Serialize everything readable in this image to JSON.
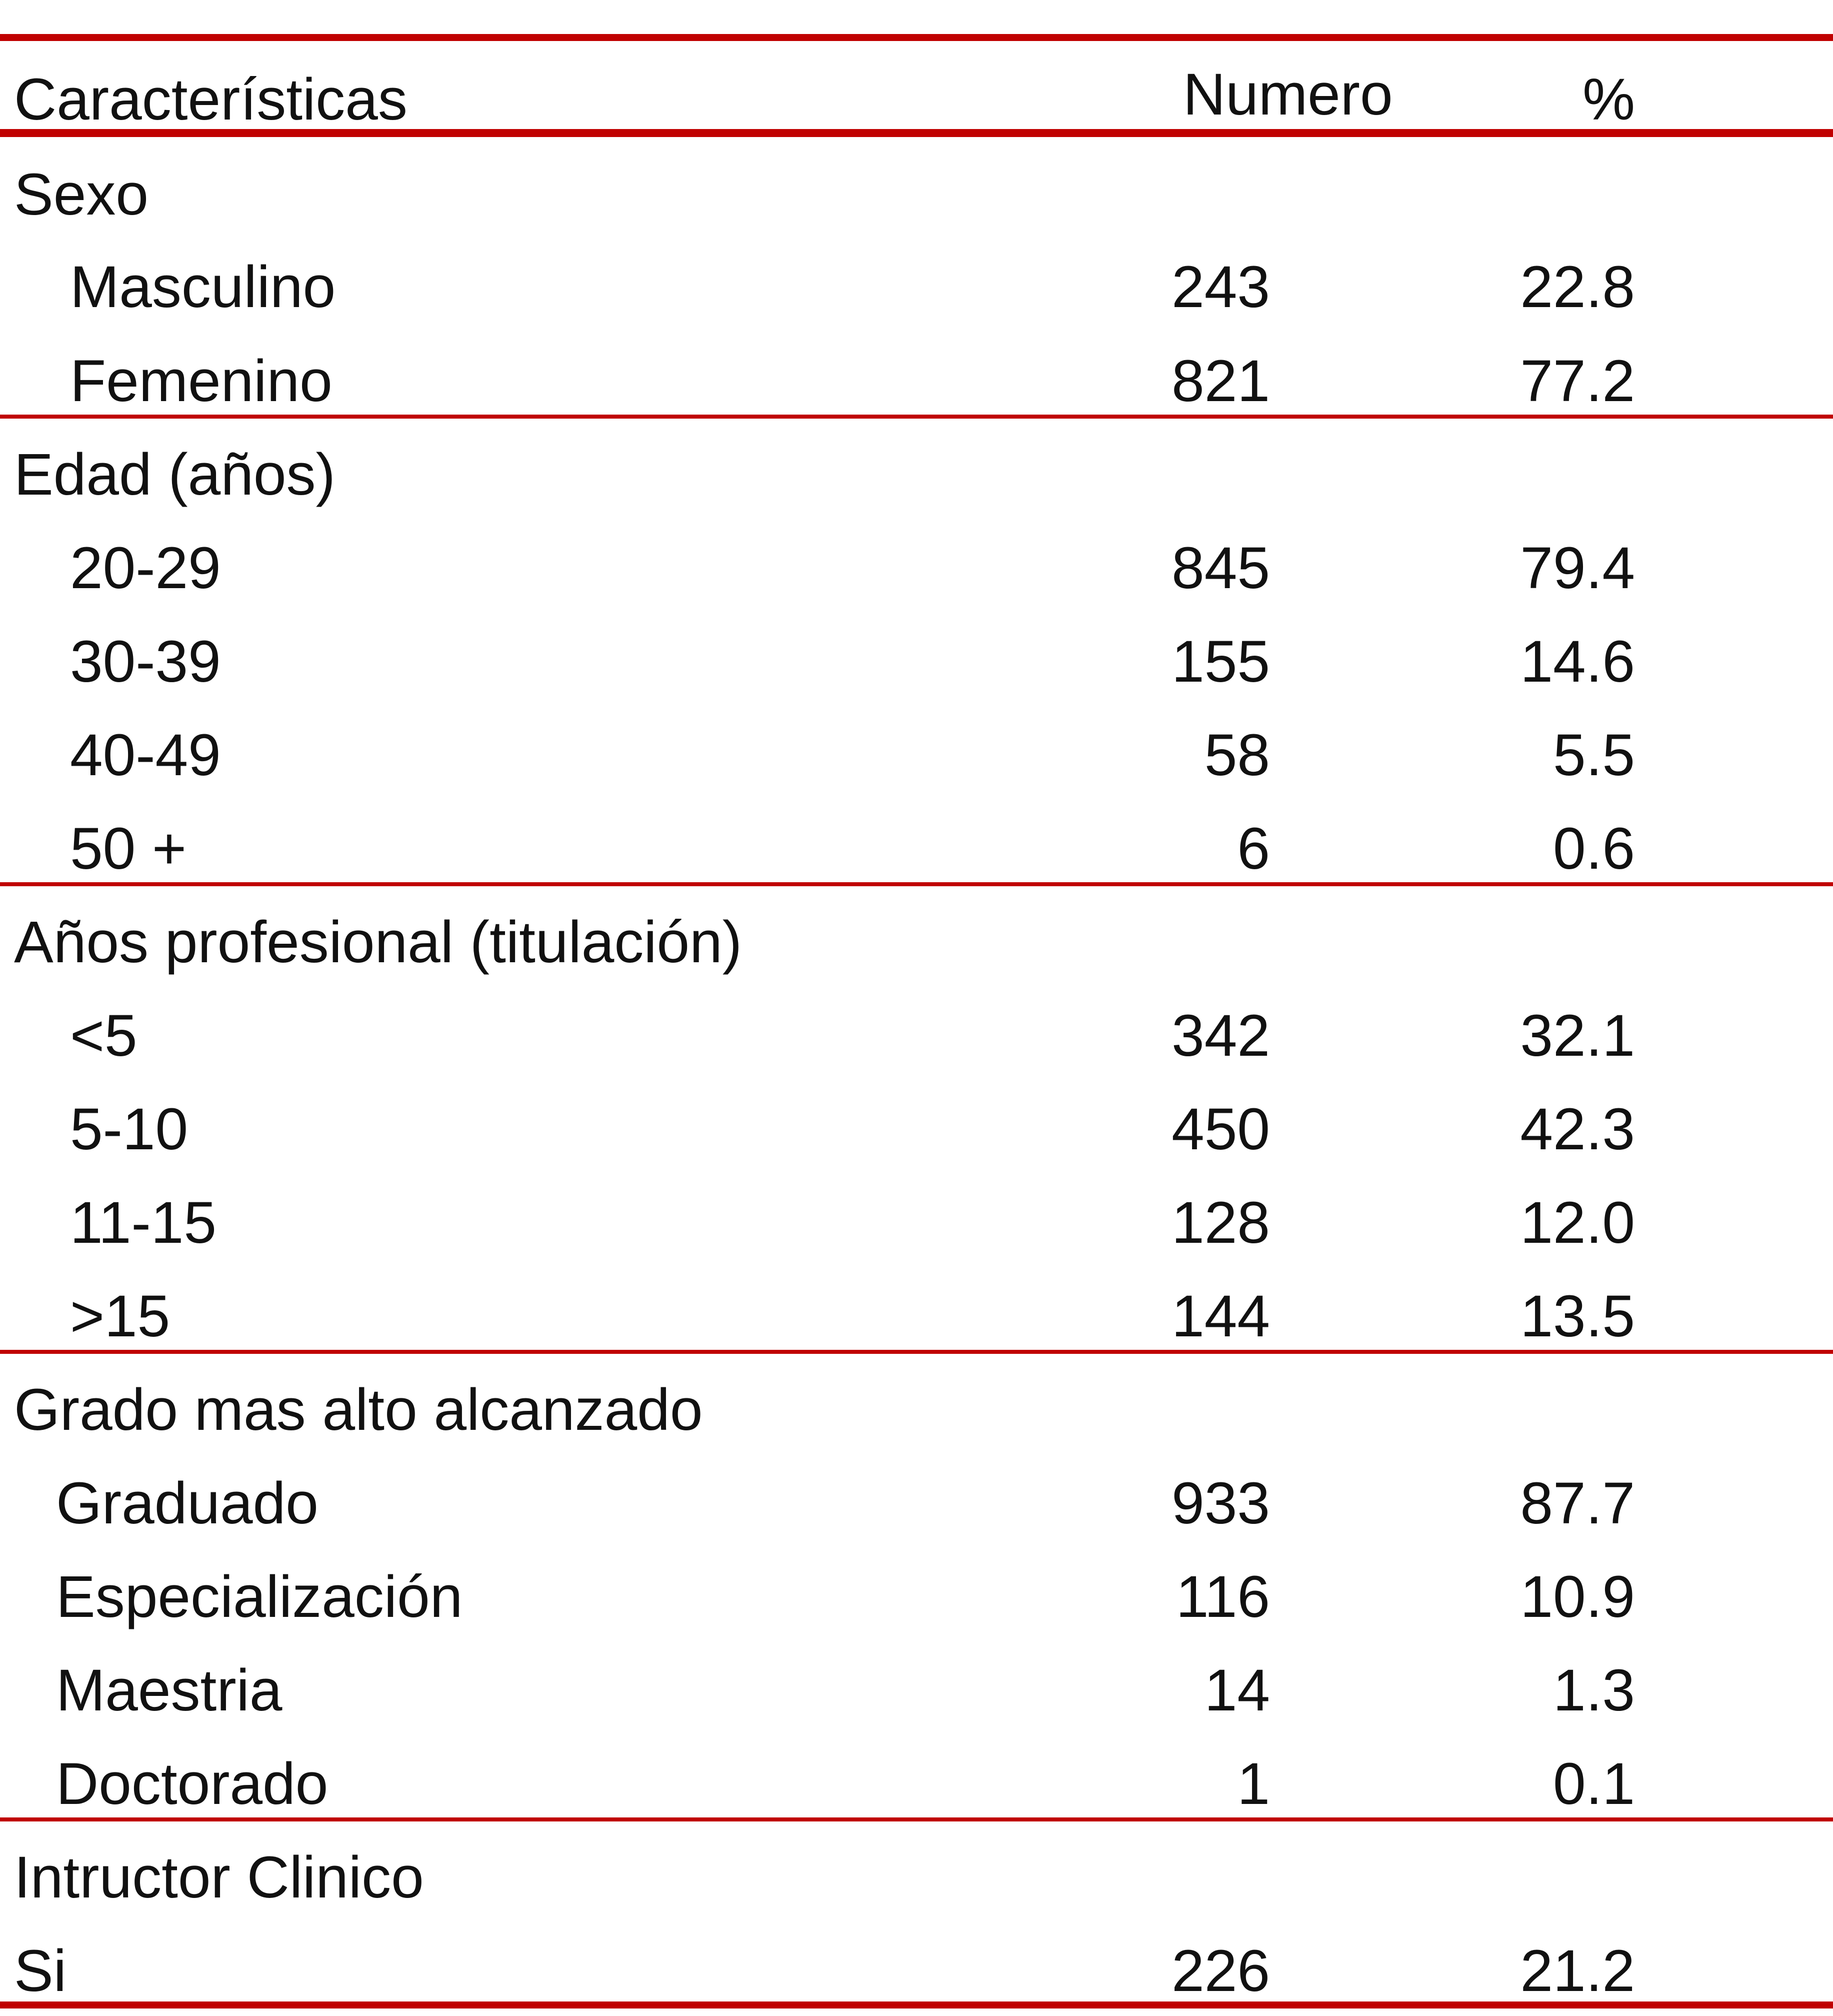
{
  "table": {
    "headers": {
      "characteristic": "Características",
      "number": "Numero",
      "percent": "%"
    },
    "sections": [
      {
        "title": "Sexo",
        "rows": [
          {
            "label": "Masculino",
            "number": "243",
            "percent": "22.8"
          },
          {
            "label": "Femenino",
            "number": "821",
            "percent": "77.2"
          }
        ]
      },
      {
        "title": "Edad (años)",
        "rows": [
          {
            "label": "20-29",
            "number": "845",
            "percent": "79.4"
          },
          {
            "label": "30-39",
            "number": "155",
            "percent": "14.6"
          },
          {
            "label": "40-49",
            "number": "58",
            "percent": "5.5"
          },
          {
            "label": "50 +",
            "number": "6",
            "percent": "0.6"
          }
        ]
      },
      {
        "title": "Años profesional (titulación)",
        "rows": [
          {
            "label": "<5",
            "number": "342",
            "percent": "32.1"
          },
          {
            "label": "5-10",
            "number": "450",
            "percent": "42.3"
          },
          {
            "label": "11-15",
            "number": "128",
            "percent": "12.0"
          },
          {
            "label": ">15",
            "number": "144",
            "percent": "13.5"
          }
        ]
      },
      {
        "title": "Grado mas alto alcanzado",
        "rows": [
          {
            "label": "Graduado",
            "number": "933",
            "percent": "87.7"
          },
          {
            "label": "Especialización",
            "number": "116",
            "percent": "10.9"
          },
          {
            "label": "Maestria",
            "number": "14",
            "percent": "1.3"
          },
          {
            "label": "Doctorado",
            "number": "1",
            "percent": "0.1"
          }
        ]
      },
      {
        "title": "Intructor Clinico",
        "rows": [
          {
            "label": "Si",
            "number": "226",
            "percent": "21.2"
          }
        ]
      }
    ]
  },
  "colors": {
    "rule": "#c00000",
    "text": "#111111"
  }
}
